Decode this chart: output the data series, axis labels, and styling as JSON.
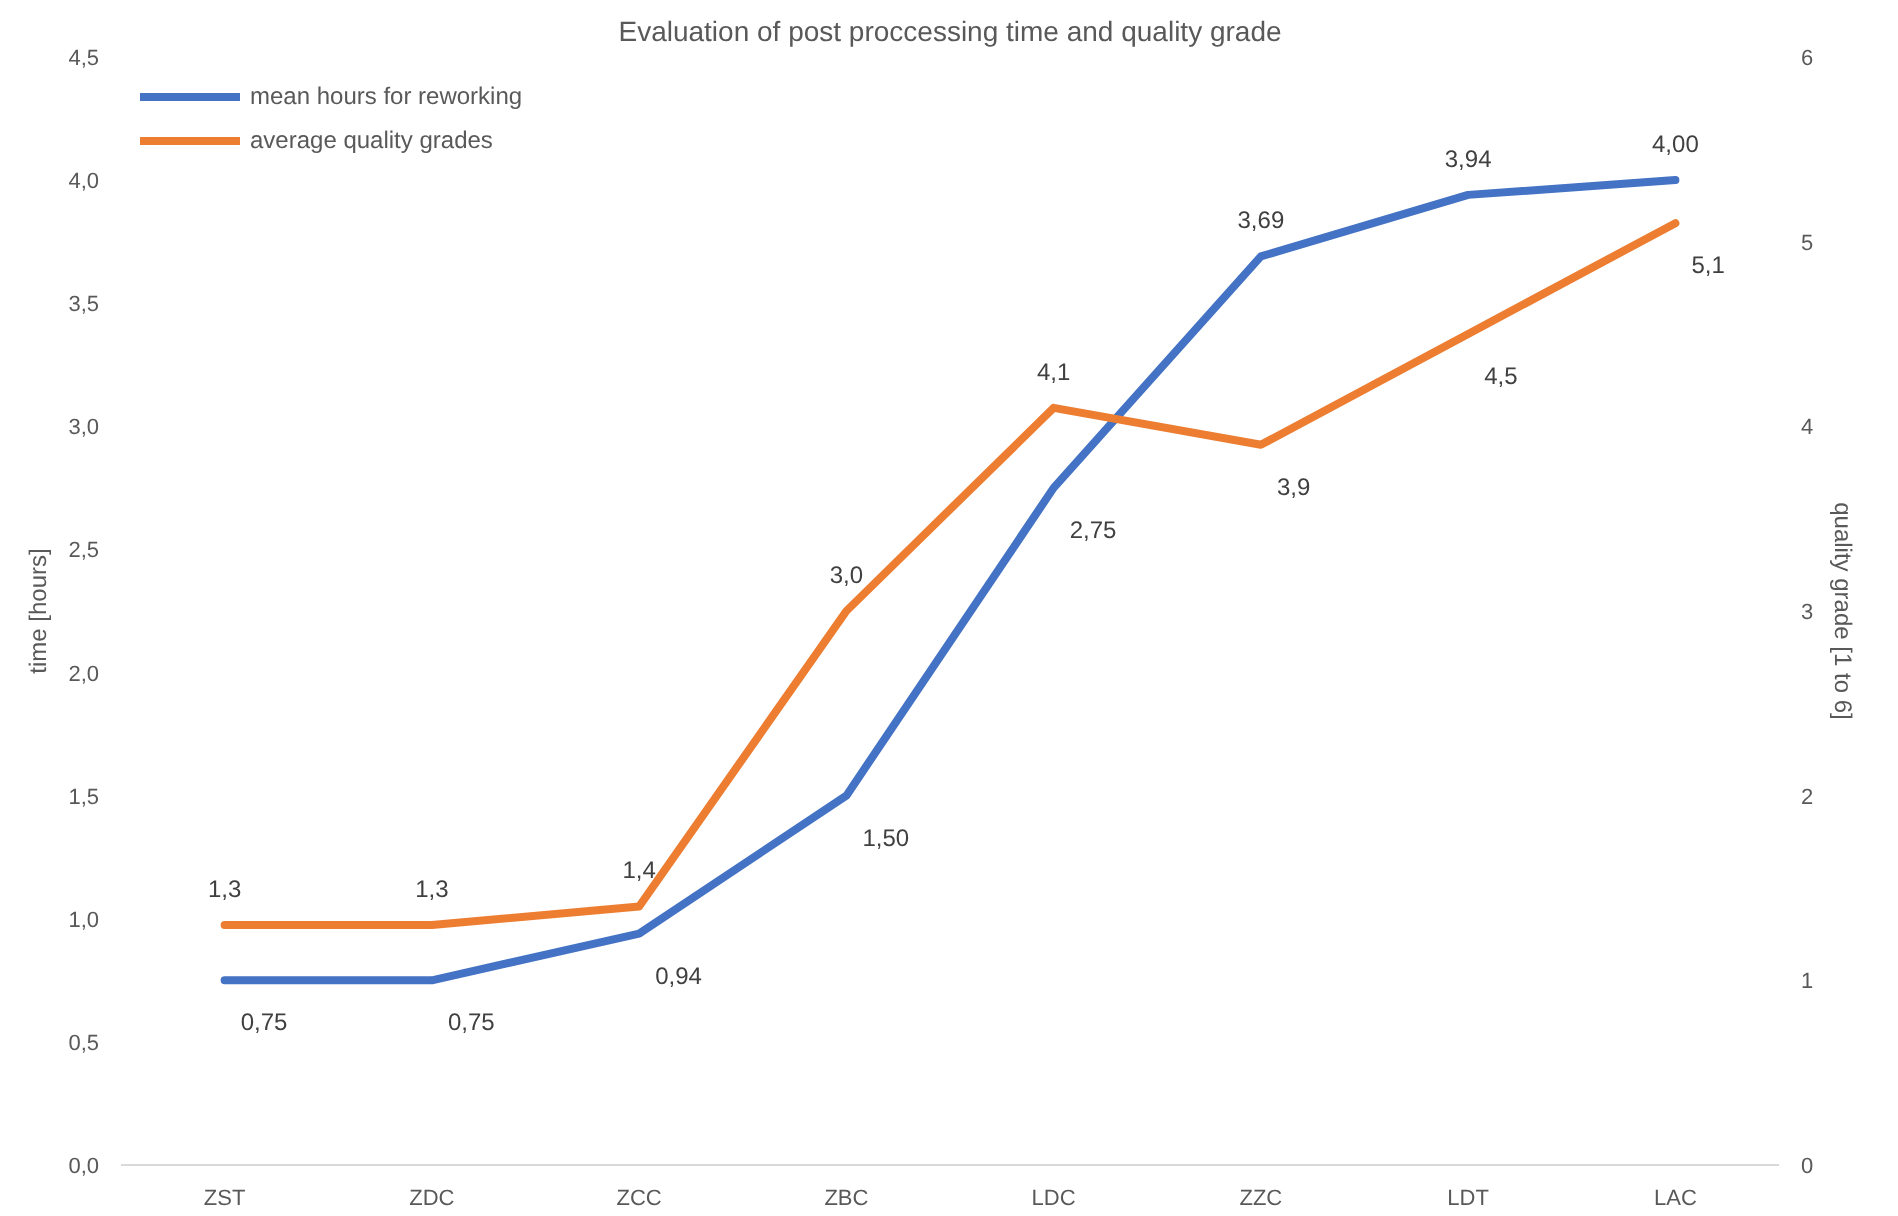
{
  "chart_data": {
    "type": "line",
    "title": "Evaluation of post proccessing time and quality grade",
    "categories": [
      "ZST",
      "ZDC",
      "ZCC",
      "ZBC",
      "LDC",
      "ZZC",
      "LDT",
      "LAC"
    ],
    "ylabel": "time [hours]",
    "y2label": "quality grade [1 to 6]",
    "ylim": [
      0,
      4.5
    ],
    "yticks": [
      {
        "value": 0,
        "label": "0,0"
      },
      {
        "value": 0.5,
        "label": "0,5"
      },
      {
        "value": 1,
        "label": "1,0"
      },
      {
        "value": 1.5,
        "label": "1,5"
      },
      {
        "value": 2,
        "label": "2,0"
      },
      {
        "value": 2.5,
        "label": "2,5"
      },
      {
        "value": 3,
        "label": "3,0"
      },
      {
        "value": 3.5,
        "label": "3,5"
      },
      {
        "value": 4,
        "label": "4,0"
      },
      {
        "value": 4.5,
        "label": "4,5"
      }
    ],
    "y2lim": [
      0,
      6
    ],
    "y2ticks": [
      0,
      1,
      2,
      3,
      4,
      5,
      6
    ],
    "series": [
      {
        "name": "mean hours for reworking",
        "color": "#4472c4",
        "values": [
          0.75,
          0.75,
          0.94,
          1.5,
          2.75,
          3.69,
          3.94,
          4.0
        ],
        "value_labels": [
          "0,75",
          "0,75",
          "0,94",
          "1,50",
          "2,75",
          "3,69",
          "3,94",
          "4,00"
        ]
      },
      {
        "name": "average quality grades",
        "color": "#ed7d31",
        "axis": "y2",
        "values": [
          1.3,
          1.3,
          1.4,
          3.0,
          4.1,
          3.9,
          4.5,
          5.1
        ],
        "value_labels": [
          "1,3",
          "1,3",
          "1,4",
          "3,0",
          "4,1",
          "3,9",
          "4,5",
          "5,1"
        ]
      }
    ],
    "legend": "top left",
    "grid": false,
    "marker": "none",
    "line_style": "solid"
  }
}
